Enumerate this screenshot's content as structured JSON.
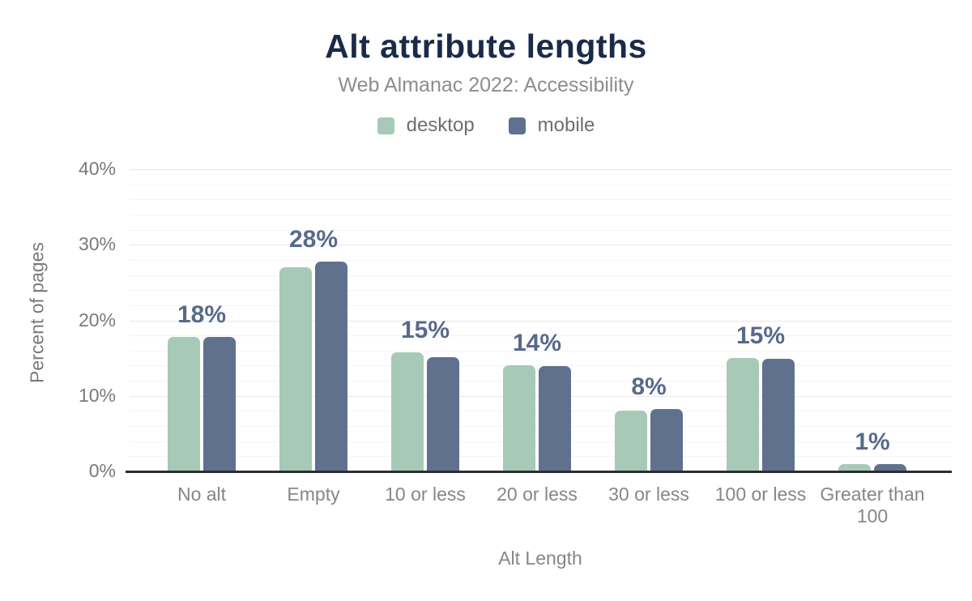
{
  "header": {
    "title": "Alt attribute lengths",
    "subtitle": "Web Almanac 2022: Accessibility"
  },
  "legend": [
    {
      "label": "desktop",
      "color": "#a7c9b8"
    },
    {
      "label": "mobile",
      "color": "#5f718c"
    }
  ],
  "chart_data": {
    "type": "bar",
    "title": "Alt attribute lengths",
    "subtitle": "Web Almanac 2022: Accessibility",
    "categories": [
      "No alt",
      "Empty",
      "10 or less",
      "20 or less",
      "30 or less",
      "100 or less",
      "Greater than 100"
    ],
    "series": [
      {
        "name": "desktop",
        "color": "#a7c9b8",
        "values": [
          17.9,
          27.1,
          15.9,
          14.2,
          8.1,
          15.1,
          1.1
        ]
      },
      {
        "name": "mobile",
        "color": "#5f718c",
        "values": [
          17.9,
          27.9,
          15.2,
          14.1,
          8.4,
          15.0,
          1.1
        ]
      }
    ],
    "annotations": [
      "18%",
      "28%",
      "15%",
      "14%",
      "8%",
      "15%",
      "1%"
    ],
    "annotation_color": "#586a8c",
    "xlabel": "Alt Length",
    "ylabel": "Percent of pages",
    "ylim": [
      0,
      40
    ],
    "yticks": [
      0,
      10,
      20,
      30,
      40
    ],
    "ytick_labels": [
      "0%",
      "10%",
      "20%",
      "30%",
      "40%"
    ],
    "minor_grid_step": 2,
    "grid": true,
    "legend_position": "top"
  },
  "colors": {
    "title": "#1a2b4a",
    "subtitle": "#8d8d8d",
    "axis_text": "#7a7a7a",
    "axis_line": "#2d2d2d",
    "grid_major": "#e6e6e6",
    "grid_minor": "#f4f4f4",
    "background": "#ffffff"
  }
}
